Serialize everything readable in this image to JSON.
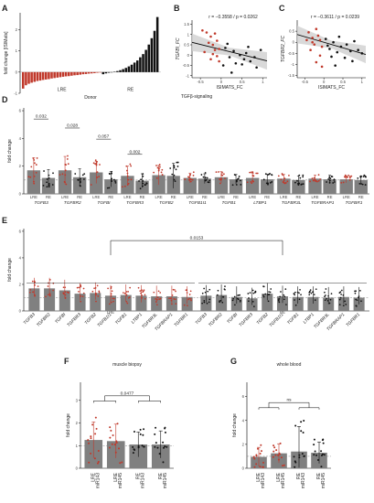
{
  "colors": {
    "lre": "#c0392b",
    "re": "#111111",
    "bar": "#808080",
    "band": "#cfcfcf"
  },
  "chart_data": [
    {
      "id": "A",
      "panel_label": "A",
      "type": "bar",
      "ylabel": "fold change [ISIMats]",
      "xlabel": "Donor",
      "ylim": [
        -1,
        2.8
      ],
      "yticks": [
        -1,
        0,
        1,
        2
      ],
      "group_labels": [
        "LRE",
        "RE"
      ],
      "lre_values": [
        -0.78,
        -0.62,
        -0.55,
        -0.5,
        -0.46,
        -0.42,
        -0.4,
        -0.37,
        -0.35,
        -0.33,
        -0.3,
        -0.28,
        -0.26,
        -0.24,
        -0.22,
        -0.2,
        -0.19,
        -0.17,
        -0.15,
        -0.14,
        -0.12,
        -0.1,
        -0.09,
        -0.07,
        -0.06,
        -0.05,
        -0.03,
        -0.02
      ],
      "re_values": [
        -0.1,
        -0.06,
        -0.03,
        -0.01,
        0.02,
        0.05,
        0.09,
        0.14,
        0.2,
        0.27,
        0.35,
        0.45,
        0.55,
        0.7,
        0.85,
        1.05,
        1.3,
        1.6,
        1.95,
        2.6
      ]
    },
    {
      "id": "B",
      "panel_label": "B",
      "type": "scatter",
      "title": "r = −0.3558 / p = 0.0262",
      "xlabel": "ISIMATS_FC",
      "ylabel": "TGFBI_FC",
      "xlim": [
        -0.7,
        1.1
      ],
      "ylim": [
        -1.1,
        1.7
      ],
      "xticks": [
        -0.5,
        0,
        0.5,
        1
      ],
      "yticks": [
        -1,
        -0.5,
        0,
        0.5,
        1,
        1.5
      ],
      "fit": [
        [
          -0.7,
          0.62
        ],
        [
          1.1,
          -0.28
        ]
      ],
      "lre_points": [
        [
          -0.45,
          1.2
        ],
        [
          -0.35,
          1.1
        ],
        [
          -0.25,
          0.9
        ],
        [
          -0.2,
          0.5
        ],
        [
          -0.15,
          1.05
        ],
        [
          -0.1,
          0.7
        ],
        [
          -0.05,
          0.3
        ],
        [
          -0.3,
          0.6
        ],
        [
          -0.4,
          0.15
        ],
        [
          -0.2,
          0.05
        ],
        [
          -0.05,
          -0.3
        ],
        [
          -0.1,
          -0.05
        ],
        [
          -0.15,
          0.25
        ],
        [
          -0.25,
          -0.2
        ]
      ],
      "re_points": [
        [
          0.1,
          0.35
        ],
        [
          0.2,
          -0.1
        ],
        [
          0.3,
          0.2
        ],
        [
          0.45,
          0.0
        ],
        [
          0.5,
          -0.45
        ],
        [
          0.55,
          -0.2
        ],
        [
          0.6,
          0.1
        ],
        [
          0.7,
          -0.3
        ],
        [
          0.8,
          -0.1
        ],
        [
          0.95,
          0.25
        ],
        [
          0.05,
          -0.5
        ],
        [
          0.15,
          0.55
        ],
        [
          0.35,
          -0.4
        ],
        [
          0.65,
          0.4
        ],
        [
          0.85,
          -0.6
        ],
        [
          0.25,
          -0.85
        ]
      ]
    },
    {
      "id": "C",
      "panel_label": "C",
      "type": "scatter",
      "title": "r = −0.3611 / p = 0.0239",
      "xlabel": "ISIMATS_FC",
      "ylabel": "TGFBR2_FC",
      "xlim": [
        -0.7,
        1.1
      ],
      "ylim": [
        -1.6,
        1.0
      ],
      "xticks": [
        -0.5,
        0,
        0.5,
        1
      ],
      "yticks": [
        -1.5,
        -1,
        -0.5,
        0,
        0.5
      ],
      "fit": [
        [
          -0.7,
          0.35
        ],
        [
          1.1,
          -0.55
        ]
      ],
      "lre_points": [
        [
          -0.4,
          0.45
        ],
        [
          -0.3,
          0.2
        ],
        [
          -0.2,
          0.6
        ],
        [
          -0.1,
          0.1
        ],
        [
          -0.05,
          -0.2
        ],
        [
          -0.25,
          -0.1
        ],
        [
          -0.15,
          0.3
        ],
        [
          -0.35,
          -0.35
        ],
        [
          -0.1,
          -0.6
        ],
        [
          -0.2,
          -0.9
        ],
        [
          -0.05,
          -1.1
        ],
        [
          -0.3,
          0.0
        ],
        [
          -0.45,
          0.1
        ]
      ],
      "re_points": [
        [
          0.05,
          0.15
        ],
        [
          0.15,
          -0.3
        ],
        [
          0.25,
          0.0
        ],
        [
          0.35,
          -0.45
        ],
        [
          0.45,
          -0.2
        ],
        [
          0.55,
          -0.7
        ],
        [
          0.6,
          -0.1
        ],
        [
          0.7,
          -0.4
        ],
        [
          0.8,
          0.05
        ],
        [
          0.9,
          -0.35
        ],
        [
          0.2,
          -0.65
        ],
        [
          0.4,
          0.25
        ],
        [
          0.75,
          -0.85
        ],
        [
          0.1,
          -0.15
        ],
        [
          1.0,
          -0.5
        ],
        [
          0.3,
          -1.05
        ]
      ]
    },
    {
      "id": "D",
      "panel_label": "D",
      "type": "bar",
      "title": "TGFβ-signaling",
      "ylabel": "fold change",
      "ylim": [
        0,
        6.2
      ],
      "yticks": [
        0,
        2,
        4,
        6
      ],
      "genes": [
        "TGFB3",
        "TGFBR2",
        "TGFBI",
        "TGFBR3",
        "TGFB2",
        "TGFB1I1",
        "TGFB1",
        "LTBP1",
        "TGFBR3L",
        "TGFBRAP1",
        "TGFBR1"
      ],
      "group_labels": [
        "LRE",
        "RE"
      ],
      "lre_means": [
        1.7,
        1.7,
        1.55,
        1.3,
        1.35,
        1.15,
        1.2,
        1.15,
        1.1,
        1.1,
        1.05
      ],
      "re_means": [
        1.15,
        1.2,
        1.05,
        0.95,
        1.3,
        1.1,
        1.05,
        1.05,
        1.0,
        1.05,
        1.0
      ],
      "lre_sd": [
        0.9,
        1.0,
        0.8,
        0.7,
        0.7,
        0.35,
        0.4,
        0.35,
        0.3,
        0.25,
        0.25
      ],
      "re_sd": [
        0.6,
        0.6,
        0.55,
        0.5,
        0.9,
        0.35,
        0.35,
        0.35,
        0.3,
        0.3,
        0.3
      ],
      "brackets": [
        {
          "gene": "TGFB3",
          "label": "0.032",
          "y": 5.4
        },
        {
          "gene": "TGFBR2",
          "label": "0.028",
          "y": 4.75
        },
        {
          "gene": "TGFBI",
          "label": "0.057",
          "y": 3.95
        },
        {
          "gene": "TGFBR3",
          "label": "0.002",
          "y": 2.85
        }
      ]
    },
    {
      "id": "E",
      "panel_label": "E",
      "type": "bar",
      "ylabel": "fold change",
      "ylim": [
        0,
        6.2
      ],
      "yticks": [
        0,
        2,
        4,
        6
      ],
      "genes": [
        "TGFB3",
        "TGFBR2",
        "TGFBI",
        "TGFBR3",
        "TGFB2",
        "TGFB1I1",
        "TGFB1",
        "LTBP1",
        "TGFBR3L",
        "TGFBRAP1",
        "TGFBR1"
      ],
      "group_labels": [
        "LRE",
        "RE"
      ],
      "lre_means": [
        1.7,
        1.7,
        1.55,
        1.3,
        1.35,
        1.15,
        1.2,
        1.15,
        1.1,
        1.1,
        1.05
      ],
      "re_means": [
        1.15,
        1.2,
        1.05,
        0.95,
        1.3,
        1.1,
        1.05,
        1.05,
        1.0,
        1.05,
        1.0
      ],
      "bracket": {
        "label": "0.0153",
        "y": 5.3
      }
    },
    {
      "id": "F",
      "panel_label": "F",
      "type": "bar",
      "title": "muscle biopsy",
      "ylabel": "fold change",
      "ylim": [
        0,
        3.8
      ],
      "yticks": [
        0,
        1,
        2,
        3
      ],
      "categories": [
        [
          "LRE",
          "miR143"
        ],
        [
          "LRE",
          "miR145"
        ],
        [
          "RE",
          "miR143"
        ],
        [
          "RE",
          "miR145"
        ]
      ],
      "values": [
        1.25,
        1.2,
        1.05,
        1.05
      ],
      "sd": [
        0.8,
        0.75,
        0.55,
        0.6
      ],
      "bracket": {
        "label": "0.0477",
        "y": 3.2
      }
    },
    {
      "id": "G",
      "panel_label": "G",
      "type": "bar",
      "title": "whole blood",
      "ylabel": "fold change",
      "ylim": [
        0,
        7.2
      ],
      "yticks": [
        0,
        2,
        4,
        6
      ],
      "categories": [
        [
          "LRE",
          "miR143"
        ],
        [
          "LRE",
          "miR145"
        ],
        [
          "RE",
          "miR143"
        ],
        [
          "RE",
          "miR145"
        ]
      ],
      "values": [
        0.95,
        1.25,
        1.4,
        1.3
      ],
      "sd": [
        0.8,
        0.8,
        2.1,
        0.9
      ],
      "bracket": {
        "label": "ns",
        "y": 5.5
      }
    }
  ]
}
